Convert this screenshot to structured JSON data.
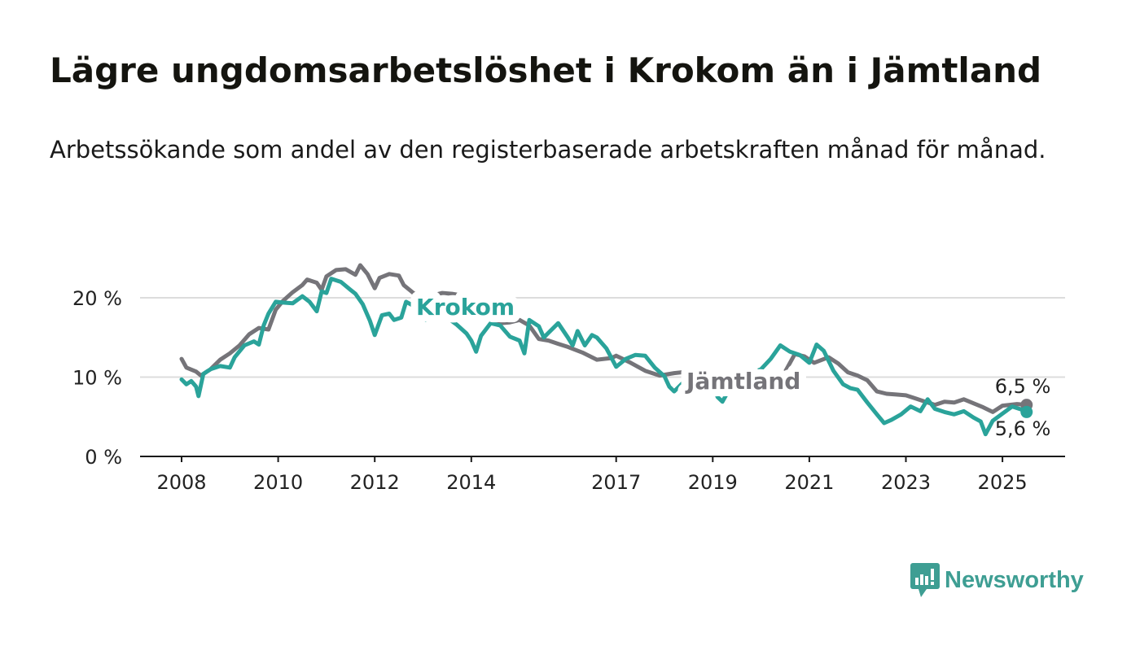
{
  "title": "Lägre ungdomsarbetslöshet i Krokom än i Jämtland",
  "subtitle": "Arbetssökande som andel av den registerbaserade arbetskraften månad för månad.",
  "brand": {
    "name": "Newsworthy",
    "color": "#3e9e93"
  },
  "chart_data": {
    "type": "line",
    "x_ticks": [
      "2008",
      "2010",
      "2012",
      "2014",
      "2017",
      "2019",
      "2021",
      "2023",
      "2025"
    ],
    "y_ticks": [
      "0 %",
      "10 %",
      "20 %"
    ],
    "ylim": [
      0,
      25
    ],
    "xlim": [
      2007.3,
      2025.9
    ],
    "grid": true,
    "series": [
      {
        "name": "Jämtland",
        "color": "#757479",
        "end_label": "6,5 %",
        "points": [
          [
            2008.0,
            12.3
          ],
          [
            2008.1,
            11.2
          ],
          [
            2008.3,
            10.7
          ],
          [
            2008.4,
            10.2
          ],
          [
            2008.6,
            11.0
          ],
          [
            2008.8,
            12.2
          ],
          [
            2009.0,
            13.0
          ],
          [
            2009.2,
            14.0
          ],
          [
            2009.4,
            15.4
          ],
          [
            2009.6,
            16.2
          ],
          [
            2009.8,
            16.0
          ],
          [
            2009.95,
            18.5
          ],
          [
            2010.1,
            19.6
          ],
          [
            2010.3,
            20.7
          ],
          [
            2010.5,
            21.6
          ],
          [
            2010.6,
            22.3
          ],
          [
            2010.8,
            21.9
          ],
          [
            2010.9,
            21.0
          ],
          [
            2011.0,
            22.7
          ],
          [
            2011.2,
            23.5
          ],
          [
            2011.4,
            23.6
          ],
          [
            2011.6,
            22.9
          ],
          [
            2011.7,
            24.1
          ],
          [
            2011.85,
            23.0
          ],
          [
            2012.0,
            21.2
          ],
          [
            2012.1,
            22.5
          ],
          [
            2012.3,
            23.0
          ],
          [
            2012.5,
            22.8
          ],
          [
            2012.6,
            21.6
          ],
          [
            2012.8,
            20.6
          ],
          [
            2013.0,
            19.8
          ],
          [
            2013.2,
            20.3
          ],
          [
            2013.4,
            20.6
          ],
          [
            2013.6,
            20.5
          ],
          [
            2013.7,
            20.4
          ],
          [
            2014.0,
            19.5
          ],
          [
            2014.2,
            18.2
          ],
          [
            2014.4,
            17.5
          ],
          [
            2014.6,
            16.8
          ],
          [
            2014.8,
            16.9
          ],
          [
            2015.0,
            17.2
          ],
          [
            2015.2,
            16.5
          ],
          [
            2015.4,
            14.8
          ],
          [
            2015.6,
            14.6
          ],
          [
            2015.8,
            14.2
          ],
          [
            2016.0,
            13.8
          ],
          [
            2016.3,
            13.1
          ],
          [
            2016.6,
            12.2
          ],
          [
            2016.9,
            12.4
          ],
          [
            2017.0,
            12.7
          ],
          [
            2017.3,
            11.8
          ],
          [
            2017.6,
            10.8
          ],
          [
            2017.9,
            10.2
          ],
          [
            2018.2,
            10.5
          ],
          [
            2018.5,
            10.7
          ],
          [
            2018.8,
            9.7
          ],
          [
            2019.0,
            9.1
          ],
          [
            2019.3,
            8.5
          ],
          [
            2019.6,
            8.2
          ],
          [
            2019.9,
            8.3
          ],
          [
            2020.2,
            9.3
          ],
          [
            2020.5,
            10.7
          ],
          [
            2020.7,
            12.9
          ],
          [
            2020.9,
            12.6
          ],
          [
            2021.1,
            11.8
          ],
          [
            2021.4,
            12.5
          ],
          [
            2021.6,
            11.7
          ],
          [
            2021.8,
            10.6
          ],
          [
            2022.0,
            10.2
          ],
          [
            2022.2,
            9.6
          ],
          [
            2022.4,
            8.2
          ],
          [
            2022.6,
            7.9
          ],
          [
            2022.8,
            7.8
          ],
          [
            2023.0,
            7.7
          ],
          [
            2023.2,
            7.3
          ],
          [
            2023.4,
            6.9
          ],
          [
            2023.6,
            6.5
          ],
          [
            2023.8,
            6.9
          ],
          [
            2024.0,
            6.8
          ],
          [
            2024.2,
            7.2
          ],
          [
            2024.4,
            6.7
          ],
          [
            2024.6,
            6.2
          ],
          [
            2024.8,
            5.6
          ],
          [
            2025.0,
            6.4
          ],
          [
            2025.3,
            6.6
          ],
          [
            2025.5,
            6.5
          ]
        ]
      },
      {
        "name": "Krokom",
        "color": "#2aa39a",
        "end_label": "5,6 %",
        "points": [
          [
            2008.0,
            9.7
          ],
          [
            2008.1,
            9.1
          ],
          [
            2008.2,
            9.5
          ],
          [
            2008.3,
            8.8
          ],
          [
            2008.35,
            7.6
          ],
          [
            2008.45,
            10.4
          ],
          [
            2008.6,
            11.0
          ],
          [
            2008.8,
            11.4
          ],
          [
            2009.0,
            11.2
          ],
          [
            2009.1,
            12.5
          ],
          [
            2009.3,
            14.0
          ],
          [
            2009.5,
            14.5
          ],
          [
            2009.6,
            14.1
          ],
          [
            2009.7,
            16.5
          ],
          [
            2009.8,
            18.0
          ],
          [
            2009.95,
            19.5
          ],
          [
            2010.1,
            19.4
          ],
          [
            2010.3,
            19.3
          ],
          [
            2010.5,
            20.2
          ],
          [
            2010.65,
            19.5
          ],
          [
            2010.8,
            18.3
          ],
          [
            2010.9,
            20.8
          ],
          [
            2011.0,
            20.6
          ],
          [
            2011.1,
            22.4
          ],
          [
            2011.3,
            22.0
          ],
          [
            2011.5,
            21.0
          ],
          [
            2011.6,
            20.5
          ],
          [
            2011.75,
            19.2
          ],
          [
            2011.9,
            17.1
          ],
          [
            2012.0,
            15.3
          ],
          [
            2012.15,
            17.8
          ],
          [
            2012.3,
            18.0
          ],
          [
            2012.4,
            17.2
          ],
          [
            2012.55,
            17.5
          ],
          [
            2012.65,
            19.5
          ],
          [
            2012.8,
            19.0
          ],
          [
            2012.9,
            17.7
          ],
          [
            2013.05,
            17.2
          ],
          [
            2013.2,
            18.5
          ],
          [
            2013.3,
            17.9
          ],
          [
            2013.4,
            18.2
          ],
          [
            2013.5,
            17.5
          ],
          [
            2013.7,
            16.6
          ],
          [
            2013.9,
            15.5
          ],
          [
            2014.0,
            14.6
          ],
          [
            2014.1,
            13.2
          ],
          [
            2014.2,
            15.2
          ],
          [
            2014.4,
            16.8
          ],
          [
            2014.6,
            16.5
          ],
          [
            2014.8,
            15.1
          ],
          [
            2015.0,
            14.6
          ],
          [
            2015.1,
            13.0
          ],
          [
            2015.2,
            17.2
          ],
          [
            2015.4,
            16.4
          ],
          [
            2015.5,
            15.0
          ],
          [
            2015.6,
            15.6
          ],
          [
            2015.8,
            16.8
          ],
          [
            2016.0,
            15.0
          ],
          [
            2016.1,
            14.0
          ],
          [
            2016.2,
            15.8
          ],
          [
            2016.35,
            14.0
          ],
          [
            2016.5,
            15.3
          ],
          [
            2016.6,
            15.0
          ],
          [
            2016.8,
            13.6
          ],
          [
            2017.0,
            11.3
          ],
          [
            2017.2,
            12.3
          ],
          [
            2017.4,
            12.8
          ],
          [
            2017.6,
            12.7
          ],
          [
            2017.8,
            11.2
          ],
          [
            2018.0,
            10.1
          ],
          [
            2018.1,
            8.8
          ],
          [
            2018.2,
            8.2
          ],
          [
            2018.4,
            9.4
          ],
          [
            2018.6,
            10.5
          ],
          [
            2018.8,
            10.3
          ],
          [
            2019.0,
            9.3
          ],
          [
            2019.1,
            7.5
          ],
          [
            2019.2,
            6.9
          ],
          [
            2019.3,
            8.0
          ],
          [
            2019.5,
            9.0
          ],
          [
            2019.8,
            10.5
          ],
          [
            2020.0,
            11.0
          ],
          [
            2020.2,
            12.3
          ],
          [
            2020.4,
            14.0
          ],
          [
            2020.6,
            13.2
          ],
          [
            2020.8,
            12.8
          ],
          [
            2021.0,
            11.8
          ],
          [
            2021.15,
            14.1
          ],
          [
            2021.3,
            13.3
          ],
          [
            2021.5,
            10.8
          ],
          [
            2021.7,
            9.1
          ],
          [
            2021.85,
            8.6
          ],
          [
            2022.0,
            8.4
          ],
          [
            2022.2,
            6.8
          ],
          [
            2022.4,
            5.3
          ],
          [
            2022.55,
            4.2
          ],
          [
            2022.7,
            4.6
          ],
          [
            2022.9,
            5.3
          ],
          [
            2023.1,
            6.3
          ],
          [
            2023.3,
            5.7
          ],
          [
            2023.45,
            7.2
          ],
          [
            2023.6,
            6.0
          ],
          [
            2023.8,
            5.6
          ],
          [
            2024.0,
            5.3
          ],
          [
            2024.2,
            5.7
          ],
          [
            2024.4,
            4.9
          ],
          [
            2024.55,
            4.4
          ],
          [
            2024.65,
            2.8
          ],
          [
            2024.8,
            4.5
          ],
          [
            2025.0,
            5.4
          ],
          [
            2025.2,
            6.3
          ],
          [
            2025.4,
            5.9
          ],
          [
            2025.5,
            5.6
          ]
        ]
      }
    ]
  }
}
